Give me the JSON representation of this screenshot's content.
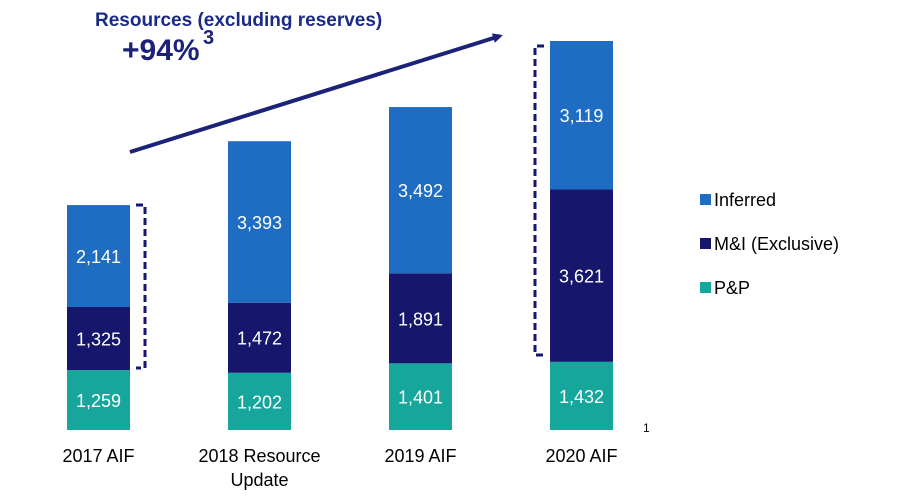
{
  "chart_data": {
    "type": "stacked_bar",
    "title": "Resources (excluding reserves)",
    "annotations": [
      "+94%",
      "3",
      "1"
    ],
    "categories": [
      "2017 AIF",
      "2018 Resource Update",
      "2019 AIF",
      "2020 AIF"
    ],
    "series": [
      {
        "name": "P&P",
        "color": "#16a69c",
        "values": [
          1259,
          1202,
          1401,
          1432
        ],
        "value_labels": [
          "1,259",
          "1,202",
          "1,401",
          "1,432"
        ]
      },
      {
        "name": "M&I (Exclusive)",
        "color": "#15166c",
        "values": [
          1325,
          1472,
          1891,
          3621
        ],
        "value_labels": [
          "1,325",
          "1,472",
          "1,891",
          "3,621"
        ]
      },
      {
        "name": "Inferred",
        "color": "#1f6dc2",
        "values": [
          2141,
          3393,
          3492,
          3119
        ],
        "value_labels": [
          "2,141",
          "3,393",
          "3,492",
          "3,119"
        ]
      }
    ],
    "legend": "right"
  }
}
